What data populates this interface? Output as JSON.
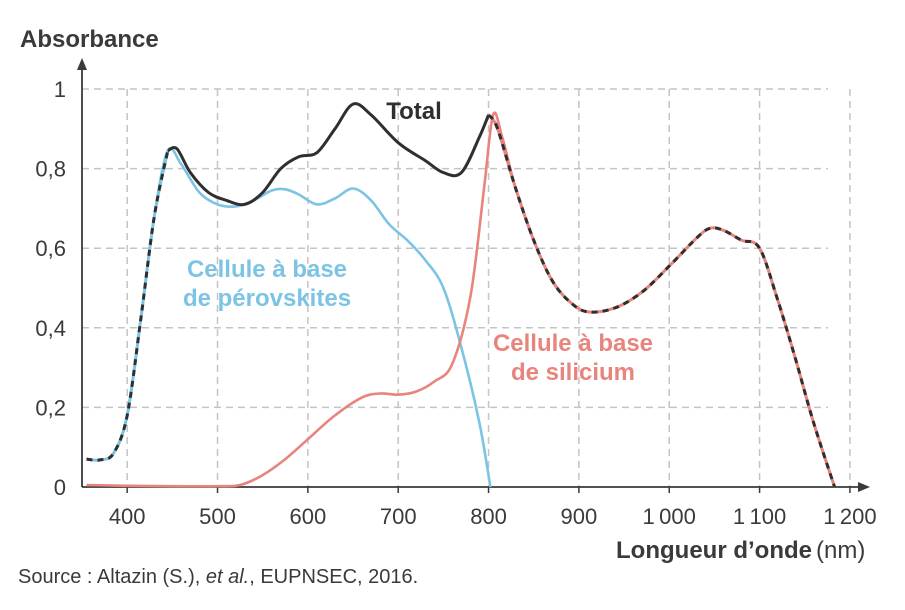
{
  "chart_data": {
    "type": "line",
    "title": "",
    "ylabel": "Absorbance",
    "xlabel": "Longueur d’onde",
    "xunit": "(nm)",
    "xlim": [
      350,
      1220
    ],
    "ylim": [
      0,
      1.0
    ],
    "x_ticks": [
      400,
      500,
      600,
      700,
      800,
      900,
      1000,
      1100,
      1200
    ],
    "x_tick_labels": [
      "400",
      "500",
      "600",
      "700",
      "800",
      "900",
      "1 000",
      "1 100",
      "1 200"
    ],
    "y_ticks": [
      0,
      0.2,
      0.4,
      0.6,
      0.8,
      1
    ],
    "y_tick_labels": [
      "0",
      "0,2",
      "0,4",
      "0,6",
      "0,8",
      "1"
    ],
    "grid": true,
    "series": [
      {
        "name": "Cellule à base de pérovskites",
        "label_lines": [
          "Cellule à base",
          "de pérovskites"
        ],
        "color": "#7cc4e4",
        "x": [
          355,
          370,
          385,
          400,
          415,
          430,
          445,
          460,
          480,
          500,
          520,
          540,
          560,
          575,
          590,
          610,
          630,
          650,
          670,
          690,
          710,
          730,
          750,
          770,
          790,
          802
        ],
        "y": [
          0.07,
          0.068,
          0.085,
          0.18,
          0.42,
          0.68,
          0.845,
          0.81,
          0.74,
          0.71,
          0.705,
          0.72,
          0.745,
          0.748,
          0.735,
          0.71,
          0.725,
          0.75,
          0.72,
          0.66,
          0.62,
          0.57,
          0.5,
          0.35,
          0.16,
          0.0
        ]
      },
      {
        "name": "Cellule à base de silicium",
        "label_lines": [
          "Cellule à base",
          "de silicium"
        ],
        "color": "#e8847c",
        "x": [
          355,
          400,
          450,
          500,
          525,
          550,
          575,
          600,
          630,
          660,
          680,
          700,
          720,
          740,
          760,
          780,
          795,
          805,
          815,
          830,
          850,
          870,
          890,
          910,
          940,
          970,
          1000,
          1030,
          1045,
          1060,
          1080,
          1100,
          1120,
          1140,
          1160,
          1183
        ],
        "y": [
          0.005,
          0.003,
          0.002,
          0.002,
          0.005,
          0.03,
          0.07,
          0.12,
          0.18,
          0.225,
          0.235,
          0.232,
          0.24,
          0.265,
          0.31,
          0.48,
          0.75,
          0.935,
          0.88,
          0.75,
          0.62,
          0.52,
          0.465,
          0.44,
          0.45,
          0.49,
          0.555,
          0.625,
          0.65,
          0.645,
          0.62,
          0.6,
          0.47,
          0.32,
          0.16,
          0.0
        ]
      },
      {
        "name": "Total",
        "label_lines": [
          "Total"
        ],
        "color": "#2f2f2f",
        "x": [
          355,
          370,
          385,
          400,
          415,
          430,
          445,
          455,
          470,
          490,
          510,
          530,
          550,
          570,
          590,
          610,
          630,
          650,
          670,
          700,
          730,
          750,
          770,
          790,
          800,
          810,
          830,
          850,
          870,
          890,
          910,
          940,
          970,
          1000,
          1030,
          1045,
          1060,
          1080,
          1100,
          1120,
          1140,
          1160,
          1183
        ],
        "y": [
          0.07,
          0.068,
          0.085,
          0.18,
          0.42,
          0.68,
          0.845,
          0.85,
          0.79,
          0.74,
          0.72,
          0.71,
          0.74,
          0.8,
          0.83,
          0.84,
          0.9,
          0.962,
          0.935,
          0.865,
          0.82,
          0.79,
          0.79,
          0.88,
          0.935,
          0.9,
          0.75,
          0.62,
          0.52,
          0.465,
          0.44,
          0.45,
          0.49,
          0.555,
          0.625,
          0.65,
          0.645,
          0.62,
          0.6,
          0.47,
          0.32,
          0.16,
          0.0
        ]
      }
    ]
  },
  "source": {
    "prefix": "Source : Altazin (S.), ",
    "italic": "et al.",
    "suffix": ", EUPNSEC, 2016."
  }
}
